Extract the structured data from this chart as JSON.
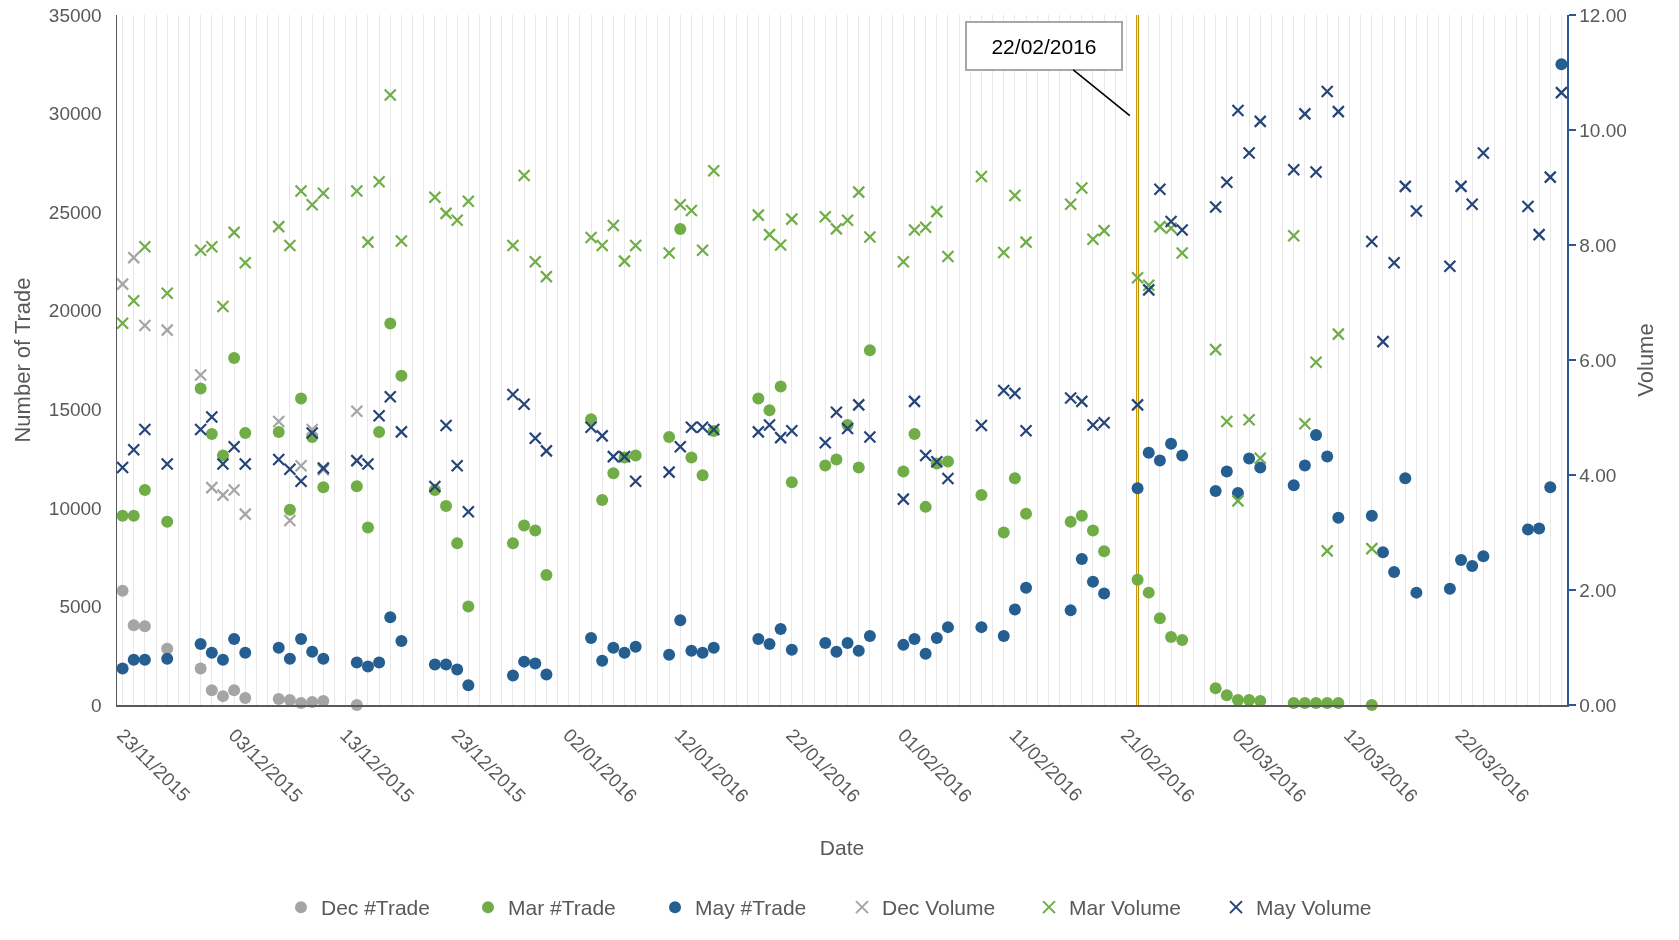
{
  "chart_data": {
    "type": "scatter",
    "xlabel": "Date",
    "ylabel": "Number of Trade",
    "y2label": "Volume",
    "legend": "bottom",
    "grid": "x",
    "xlim": [
      "2015-11-22T12:00",
      "2016-03-31T12:00"
    ],
    "xticks": [
      {
        "value": "2015-11-23",
        "label": "23/11/2015"
      },
      {
        "value": "2015-12-03",
        "label": "03/12/2015"
      },
      {
        "value": "2015-12-13",
        "label": "13/12/2015"
      },
      {
        "value": "2015-12-23",
        "label": "23/12/2015"
      },
      {
        "value": "2016-01-02",
        "label": "02/01/2016"
      },
      {
        "value": "2016-01-12",
        "label": "12/01/2016"
      },
      {
        "value": "2016-01-22",
        "label": "22/01/2016"
      },
      {
        "value": "2016-02-01",
        "label": "01/02/2016"
      },
      {
        "value": "2016-02-11",
        "label": "11/02/2016"
      },
      {
        "value": "2016-02-21",
        "label": "21/02/2016"
      },
      {
        "value": "2016-03-02",
        "label": "02/03/2016"
      },
      {
        "value": "2016-03-12",
        "label": "12/03/2016"
      },
      {
        "value": "2016-03-22",
        "label": "22/03/2016"
      }
    ],
    "ylim": [
      0,
      35000
    ],
    "yticks": [
      0,
      5000,
      10000,
      15000,
      20000,
      25000,
      30000,
      35000
    ],
    "y2lim": [
      0,
      12
    ],
    "y2ticks": [
      {
        "value": 0,
        "label": "0.00"
      },
      {
        "value": 2,
        "label": "2.00"
      },
      {
        "value": 4,
        "label": "4.00"
      },
      {
        "value": 6,
        "label": "6.00"
      },
      {
        "value": 8,
        "label": "8.00"
      },
      {
        "value": 10,
        "label": "10.00"
      },
      {
        "value": 12,
        "label": "12.00"
      }
    ],
    "ref_lines": [
      {
        "axis": "x",
        "value": "2016-02-22",
        "label": "22/02/2016",
        "color": "#bf9000"
      }
    ],
    "x": [
      "2015-11-23",
      "2015-11-24",
      "2015-11-25",
      "2015-11-27",
      "2015-11-30",
      "2015-12-01",
      "2015-12-02",
      "2015-12-03",
      "2015-12-04",
      "2015-12-07",
      "2015-12-08",
      "2015-12-09",
      "2015-12-10",
      "2015-12-11",
      "2015-12-14",
      "2015-12-15",
      "2015-12-16",
      "2015-12-17",
      "2015-12-18",
      "2015-12-21",
      "2015-12-22",
      "2015-12-23",
      "2015-12-24",
      "2015-12-28",
      "2015-12-29",
      "2015-12-30",
      "2015-12-31",
      "2016-01-04",
      "2016-01-05",
      "2016-01-06",
      "2016-01-07",
      "2016-01-08",
      "2016-01-11",
      "2016-01-12",
      "2016-01-13",
      "2016-01-14",
      "2016-01-15",
      "2016-01-19",
      "2016-01-20",
      "2016-01-21",
      "2016-01-22",
      "2016-01-25",
      "2016-01-26",
      "2016-01-27",
      "2016-01-28",
      "2016-01-29",
      "2016-02-01",
      "2016-02-02",
      "2016-02-03",
      "2016-02-04",
      "2016-02-05",
      "2016-02-08",
      "2016-02-10",
      "2016-02-11",
      "2016-02-12",
      "2016-02-16",
      "2016-02-17",
      "2016-02-18",
      "2016-02-19",
      "2016-02-22",
      "2016-02-23",
      "2016-02-24",
      "2016-02-25",
      "2016-02-26",
      "2016-02-29",
      "2016-03-01",
      "2016-03-02",
      "2016-03-03",
      "2016-03-04",
      "2016-03-07",
      "2016-03-08",
      "2016-03-09",
      "2016-03-10",
      "2016-03-11",
      "2016-03-14",
      "2016-03-15",
      "2016-03-16",
      "2016-03-17",
      "2016-03-18",
      "2016-03-21",
      "2016-03-22",
      "2016-03-23",
      "2016-03-24",
      "2016-03-28",
      "2016-03-29",
      "2016-03-30",
      "2016-03-31"
    ],
    "series": [
      {
        "name": "Dec #Trade",
        "color": "#a5a5a5",
        "marker": "circle",
        "values": [
          5800,
          4050,
          4000,
          2850,
          1850,
          750,
          450,
          750,
          350,
          300,
          250,
          100,
          150,
          200,
          0,
          null,
          null,
          null,
          null,
          null,
          null,
          null,
          null,
          null,
          null,
          null,
          null,
          null,
          null,
          null,
          null,
          null,
          null,
          null,
          null,
          null,
          null,
          null,
          null,
          null,
          null,
          null,
          null,
          null,
          null,
          null,
          null,
          null,
          null,
          null,
          null,
          null,
          null,
          null,
          null,
          null,
          null,
          null,
          null,
          null,
          null,
          null,
          null,
          null,
          null,
          null,
          null,
          null,
          null,
          null,
          null,
          null,
          null,
          null,
          null,
          null,
          null,
          null,
          null,
          null,
          null,
          null,
          null,
          null,
          null,
          null,
          null
        ]
      },
      {
        "name": "Mar #Trade",
        "color": "#70ad47",
        "marker": "circle",
        "values": [
          9600,
          9600,
          10900,
          9300,
          16050,
          13750,
          12650,
          17600,
          13800,
          13850,
          9900,
          15550,
          13600,
          11050,
          11100,
          9000,
          13850,
          19350,
          16700,
          10900,
          10100,
          8200,
          5000,
          8200,
          9100,
          8850,
          6600,
          14500,
          10400,
          11750,
          12550,
          12650,
          13600,
          24150,
          12550,
          11650,
          13900,
          15550,
          14950,
          16150,
          11300,
          12150,
          12450,
          14200,
          12050,
          18000,
          11850,
          13750,
          10050,
          12250,
          12350,
          10650,
          8750,
          11500,
          9700,
          9300,
          9600,
          8850,
          7800,
          6350,
          5700,
          4400,
          3450,
          3300,
          850,
          500,
          250,
          250,
          200,
          100,
          100,
          100,
          100,
          100,
          0,
          null,
          null,
          null,
          null,
          null,
          null,
          null,
          null,
          null,
          null,
          null,
          null
        ]
      },
      {
        "name": "May #Trade",
        "color": "#255e91",
        "marker": "circle",
        "values": [
          1850,
          2300,
          2300,
          2350,
          3100,
          2650,
          2300,
          3350,
          2650,
          2900,
          2350,
          3350,
          2700,
          2350,
          2150,
          1950,
          2150,
          4450,
          3250,
          2050,
          2050,
          1800,
          1000,
          1500,
          2200,
          2100,
          1550,
          3400,
          2250,
          2900,
          2650,
          2950,
          2550,
          4300,
          2750,
          2650,
          2900,
          3350,
          3100,
          3850,
          2800,
          3150,
          2700,
          3150,
          2750,
          3500,
          3050,
          3350,
          2600,
          3400,
          3950,
          3950,
          3500,
          4850,
          5950,
          4800,
          7400,
          6250,
          5650,
          11000,
          12800,
          12400,
          13250,
          12650,
          10850,
          11850,
          10750,
          12500,
          12050,
          11150,
          12150,
          13700,
          12600,
          9500,
          9600,
          7750,
          6750,
          11500,
          5700,
          5900,
          7350,
          7050,
          7550,
          8900,
          8950,
          11050,
          32500
        ]
      },
      {
        "name": "Dec Volume",
        "color": "#a5a5a5",
        "marker": "cross",
        "axis": "y2",
        "values": [
          7.32,
          7.78,
          6.6,
          6.52,
          5.74,
          3.78,
          3.65,
          3.74,
          3.32,
          4.93,
          3.21,
          4.16,
          4.79,
          4.09,
          5.11,
          null,
          null,
          null,
          null,
          null,
          null,
          null,
          null,
          null,
          null,
          null,
          null,
          null,
          null,
          null,
          null,
          null,
          null,
          null,
          null,
          null,
          null,
          null,
          null,
          null,
          null,
          null,
          null,
          null,
          null,
          null,
          null,
          null,
          null,
          null,
          null,
          null,
          null,
          null,
          null,
          null,
          null,
          null,
          null,
          null,
          null,
          null,
          null,
          null,
          null,
          null,
          null,
          null,
          null,
          null,
          null,
          null,
          null,
          null,
          null,
          null,
          null,
          null,
          null,
          null,
          null,
          null,
          null,
          null,
          null,
          null,
          null
        ]
      },
      {
        "name": "Mar Volume",
        "color": "#70ad47",
        "marker": "cross",
        "axis": "y2",
        "values": [
          6.64,
          7.03,
          7.97,
          7.16,
          7.91,
          7.97,
          6.93,
          8.22,
          7.69,
          8.32,
          7.99,
          8.94,
          8.7,
          8.9,
          8.94,
          8.05,
          9.1,
          10.61,
          8.07,
          8.83,
          8.55,
          8.43,
          8.76,
          7.99,
          9.21,
          7.71,
          7.45,
          8.13,
          7.99,
          8.34,
          7.72,
          7.99,
          7.86,
          8.7,
          8.6,
          7.91,
          9.29,
          8.52,
          8.18,
          8.0,
          8.45,
          8.49,
          8.28,
          8.43,
          8.92,
          8.14,
          7.71,
          8.26,
          8.31,
          8.58,
          7.8,
          9.19,
          7.87,
          8.86,
          8.05,
          8.71,
          8.99,
          8.1,
          8.25,
          7.43,
          7.3,
          8.32,
          8.29,
          7.86,
          6.18,
          4.93,
          3.55,
          4.96,
          4.29,
          8.16,
          4.89,
          5.96,
          2.68,
          6.45,
          2.72,
          null,
          null,
          null,
          null,
          null,
          null,
          null,
          null,
          null,
          null,
          null,
          null
        ]
      },
      {
        "name": "May Volume",
        "color": "#264478",
        "marker": "cross",
        "axis": "y2",
        "values": [
          4.13,
          4.44,
          4.79,
          4.19,
          4.79,
          5.01,
          4.19,
          4.49,
          4.19,
          4.27,
          4.1,
          3.89,
          4.73,
          4.12,
          4.25,
          4.19,
          5.03,
          5.36,
          4.75,
          3.8,
          4.86,
          4.16,
          3.36,
          5.4,
          5.23,
          4.64,
          4.42,
          4.83,
          4.68,
          4.32,
          4.32,
          3.89,
          4.05,
          4.49,
          4.83,
          4.83,
          4.79,
          4.75,
          4.87,
          4.65,
          4.77,
          4.56,
          5.09,
          4.81,
          5.22,
          4.66,
          3.58,
          5.28,
          4.34,
          4.23,
          3.94,
          4.86,
          5.47,
          5.42,
          4.77,
          5.34,
          5.28,
          4.87,
          4.91,
          5.22,
          7.22,
          8.97,
          8.41,
          8.26,
          8.66,
          9.09,
          10.34,
          9.6,
          10.15,
          9.31,
          10.28,
          9.27,
          10.67,
          10.32,
          8.06,
          6.32,
          7.69,
          9.02,
          8.59,
          7.63,
          9.02,
          8.71,
          9.6,
          8.67,
          8.18,
          9.18,
          10.65
        ]
      }
    ]
  }
}
